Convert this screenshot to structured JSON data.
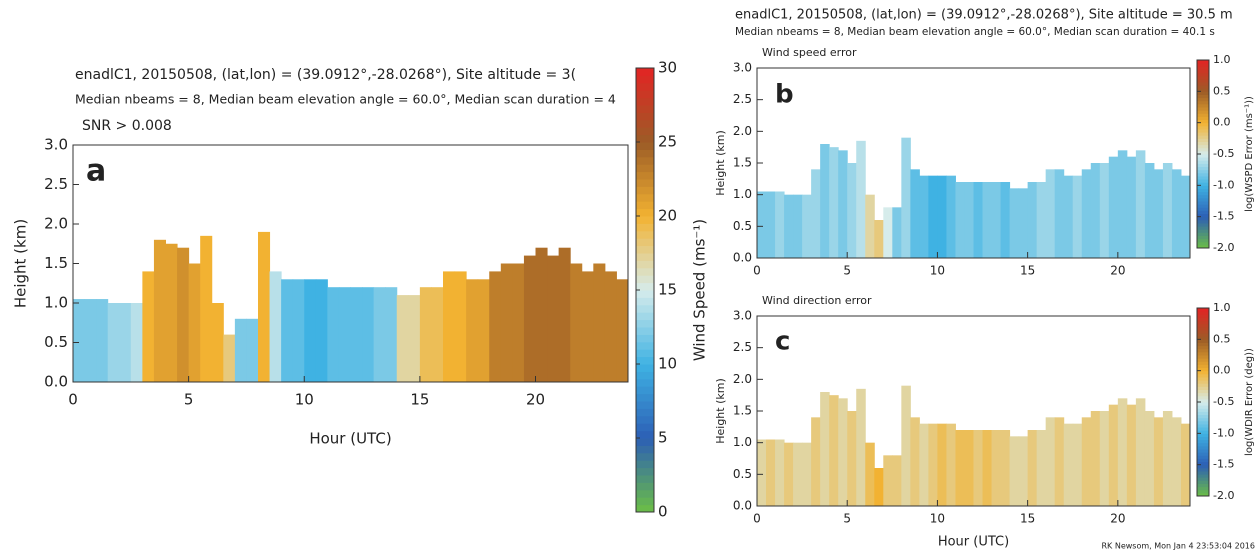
{
  "chart_data": [
    {
      "type": "heatmap",
      "panel": "a",
      "title": "enadlC1, 20150508, (lat,lon) = (39.0912°,-28.0268°), Site altitude = 3(",
      "subtitle": "Median nbeams = 8, Median beam elevation angle = 60.0°, Median scan duration = 4",
      "plot_title": "SNR > 0.008",
      "xlabel": "Hour (UTC)",
      "ylabel": "Height (km)",
      "colorbar_label": "Wind Speed (ms⁻¹)",
      "x": [
        0.25,
        0.75,
        1.25,
        1.75,
        2.25,
        2.75,
        3.25,
        3.75,
        4.25,
        4.75,
        5.25,
        5.75,
        6.25,
        6.75,
        7.25,
        7.75,
        8.25,
        8.75,
        9.25,
        9.75,
        10.25,
        10.75,
        11.25,
        11.75,
        12.25,
        12.75,
        13.25,
        13.75,
        14.25,
        14.75,
        15.25,
        15.75,
        16.25,
        16.75,
        17.25,
        17.75,
        18.25,
        18.75,
        19.25,
        19.75,
        20.25,
        20.75,
        21.25,
        21.75,
        22.25,
        22.75,
        23.25,
        23.75
      ],
      "tops": [
        1.05,
        1.05,
        1.05,
        1.0,
        1.0,
        1.0,
        1.4,
        1.8,
        1.75,
        1.7,
        1.5,
        1.85,
        1.0,
        0.6,
        0.8,
        0.8,
        1.9,
        1.4,
        1.3,
        1.3,
        1.3,
        1.3,
        1.2,
        1.2,
        1.2,
        1.2,
        1.2,
        1.2,
        1.1,
        1.1,
        1.2,
        1.2,
        1.4,
        1.4,
        1.3,
        1.3,
        1.4,
        1.5,
        1.5,
        1.6,
        1.7,
        1.6,
        1.7,
        1.5,
        1.4,
        1.5,
        1.4,
        1.3
      ],
      "values": [
        12,
        12,
        12,
        13,
        13,
        14,
        20,
        21,
        21,
        22,
        21,
        20,
        20,
        18,
        12,
        12,
        20,
        14,
        11,
        11,
        10,
        10,
        11,
        11,
        11,
        11,
        12,
        12,
        17,
        17,
        19,
        19,
        20,
        20,
        21,
        21,
        23,
        23,
        23,
        24,
        24,
        24,
        24,
        23,
        23,
        23,
        23,
        23
      ],
      "xlim": [
        0,
        24
      ],
      "ylim": [
        0,
        3
      ],
      "xticks": [
        0,
        5,
        10,
        15,
        20
      ],
      "yticks": [
        {
          "value": 0,
          "label": "0.0"
        },
        {
          "value": 0.5,
          "label": "0.5"
        },
        {
          "value": 1,
          "label": "1.0"
        },
        {
          "value": 1.5,
          "label": "1.5"
        },
        {
          "value": 2,
          "label": "2.0"
        },
        {
          "value": 2.5,
          "label": "2.5"
        },
        {
          "value": 3,
          "label": "3.0"
        }
      ],
      "clim": [
        0,
        30
      ],
      "cticks": [
        0,
        5,
        10,
        15,
        20,
        25,
        30
      ],
      "colormap": [
        "#6cbf45",
        "#2c5fb5",
        "#3fb2e3",
        "#d6eceb",
        "#f2b232",
        "#9c5c26",
        "#e32424"
      ]
    },
    {
      "type": "heatmap",
      "panel": "b",
      "title": "enadlC1, 20150508, (lat,lon) = (39.0912°,-28.0268°), Site altitude = 30.5 m",
      "subtitle": "Median nbeams = 8, Median beam elevation angle = 60.0°, Median scan duration = 40.1 s",
      "plot_title": "Wind speed error",
      "ylabel": "Height (km)",
      "colorbar_label": "log(WSPD Error (ms⁻¹))",
      "x": [
        0.25,
        0.75,
        1.25,
        1.75,
        2.25,
        2.75,
        3.25,
        3.75,
        4.25,
        4.75,
        5.25,
        5.75,
        6.25,
        6.75,
        7.25,
        7.75,
        8.25,
        8.75,
        9.25,
        9.75,
        10.25,
        10.75,
        11.25,
        11.75,
        12.25,
        12.75,
        13.25,
        13.75,
        14.25,
        14.75,
        15.25,
        15.75,
        16.25,
        16.75,
        17.25,
        17.75,
        18.25,
        18.75,
        19.25,
        19.75,
        20.25,
        20.75,
        21.25,
        21.75,
        22.25,
        22.75,
        23.25,
        23.75
      ],
      "tops": [
        1.05,
        1.05,
        1.05,
        1.0,
        1.0,
        1.0,
        1.4,
        1.8,
        1.75,
        1.7,
        1.5,
        1.85,
        1.0,
        0.6,
        0.8,
        0.8,
        1.9,
        1.4,
        1.3,
        1.3,
        1.3,
        1.3,
        1.2,
        1.2,
        1.2,
        1.2,
        1.2,
        1.2,
        1.1,
        1.1,
        1.2,
        1.2,
        1.4,
        1.4,
        1.3,
        1.3,
        1.4,
        1.5,
        1.5,
        1.6,
        1.7,
        1.6,
        1.7,
        1.5,
        1.4,
        1.5,
        1.4,
        1.3
      ],
      "values": [
        -0.8,
        -0.8,
        -0.7,
        -0.8,
        -0.8,
        -0.7,
        -0.7,
        -0.8,
        -0.7,
        -0.8,
        -0.7,
        -0.6,
        -0.3,
        -0.2,
        -0.5,
        -0.8,
        -0.7,
        -0.9,
        -0.9,
        -1.0,
        -1.0,
        -0.9,
        -0.8,
        -0.8,
        -0.9,
        -0.8,
        -0.8,
        -0.9,
        -0.8,
        -0.8,
        -0.8,
        -0.7,
        -0.7,
        -0.8,
        -0.8,
        -0.7,
        -0.8,
        -0.8,
        -0.7,
        -0.8,
        -0.8,
        -0.8,
        -0.7,
        -0.8,
        -0.8,
        -0.7,
        -0.8,
        -0.8
      ],
      "xlim": [
        0,
        24
      ],
      "ylim": [
        0,
        3
      ],
      "xticks": [
        0,
        5,
        10,
        15,
        20
      ],
      "yticks": [
        {
          "value": 0,
          "label": "0.0"
        },
        {
          "value": 0.5,
          "label": "0.5"
        },
        {
          "value": 1,
          "label": "1.0"
        },
        {
          "value": 1.5,
          "label": "1.5"
        },
        {
          "value": 2,
          "label": "2.0"
        },
        {
          "value": 2.5,
          "label": "2.5"
        },
        {
          "value": 3,
          "label": "3.0"
        }
      ],
      "clim": [
        -2,
        1
      ],
      "cticks": [
        {
          "value": -2,
          "label": "-2.0"
        },
        {
          "value": -1.5,
          "label": "-1.5"
        },
        {
          "value": -1,
          "label": "-1.0"
        },
        {
          "value": -0.5,
          "label": "-0.5"
        },
        {
          "value": 0,
          "label": "0.0"
        },
        {
          "value": 0.5,
          "label": "0.5"
        },
        {
          "value": 1,
          "label": "1.0"
        }
      ],
      "colormap": [
        "#6cbf45",
        "#2c5fb5",
        "#3fb2e3",
        "#d6eceb",
        "#f2b232",
        "#9c5c26",
        "#e32424"
      ]
    },
    {
      "type": "heatmap",
      "panel": "c",
      "plot_title": "Wind direction error",
      "xlabel": "Hour (UTC)",
      "ylabel": "Height (km)",
      "colorbar_label": "log(WDIR Error (deg))",
      "footer": "RK Newsom, Mon Jan  4 23:53:04 2016",
      "x": [
        0.25,
        0.75,
        1.25,
        1.75,
        2.25,
        2.75,
        3.25,
        3.75,
        4.25,
        4.75,
        5.25,
        5.75,
        6.25,
        6.75,
        7.25,
        7.75,
        8.25,
        8.75,
        9.25,
        9.75,
        10.25,
        10.75,
        11.25,
        11.75,
        12.25,
        12.75,
        13.25,
        13.75,
        14.25,
        14.75,
        15.25,
        15.75,
        16.25,
        16.75,
        17.25,
        17.75,
        18.25,
        18.75,
        19.25,
        19.75,
        20.25,
        20.75,
        21.25,
        21.75,
        22.25,
        22.75,
        23.25,
        23.75
      ],
      "tops": [
        1.05,
        1.05,
        1.05,
        1.0,
        1.0,
        1.0,
        1.4,
        1.8,
        1.75,
        1.7,
        1.5,
        1.85,
        1.0,
        0.6,
        0.8,
        0.8,
        1.9,
        1.4,
        1.3,
        1.3,
        1.3,
        1.3,
        1.2,
        1.2,
        1.2,
        1.2,
        1.2,
        1.2,
        1.1,
        1.1,
        1.2,
        1.2,
        1.4,
        1.4,
        1.3,
        1.3,
        1.4,
        1.5,
        1.5,
        1.6,
        1.7,
        1.6,
        1.7,
        1.5,
        1.4,
        1.5,
        1.4,
        1.3
      ],
      "values": [
        -0.3,
        -0.2,
        -0.3,
        -0.2,
        -0.3,
        -0.3,
        -0.2,
        -0.3,
        -0.2,
        -0.3,
        -0.2,
        -0.3,
        -0.1,
        0.0,
        -0.2,
        -0.2,
        -0.3,
        -0.2,
        -0.3,
        -0.2,
        -0.1,
        -0.2,
        -0.1,
        -0.1,
        -0.2,
        -0.1,
        -0.2,
        -0.2,
        -0.3,
        -0.3,
        -0.2,
        -0.3,
        -0.3,
        -0.2,
        -0.3,
        -0.3,
        -0.2,
        -0.2,
        -0.3,
        -0.2,
        -0.3,
        -0.2,
        -0.3,
        -0.3,
        -0.2,
        -0.3,
        -0.3,
        -0.2
      ],
      "xlim": [
        0,
        24
      ],
      "ylim": [
        0,
        3
      ],
      "xticks": [
        0,
        5,
        10,
        15,
        20
      ],
      "yticks": [
        {
          "value": 0,
          "label": "0.0"
        },
        {
          "value": 0.5,
          "label": "0.5"
        },
        {
          "value": 1,
          "label": "1.0"
        },
        {
          "value": 1.5,
          "label": "1.5"
        },
        {
          "value": 2,
          "label": "2.0"
        },
        {
          "value": 2.5,
          "label": "2.5"
        },
        {
          "value": 3,
          "label": "3.0"
        }
      ],
      "clim": [
        -2,
        1
      ],
      "cticks": [
        {
          "value": -2,
          "label": "-2.0"
        },
        {
          "value": -1.5,
          "label": "-1.5"
        },
        {
          "value": -1,
          "label": "-1.0"
        },
        {
          "value": -0.5,
          "label": "-0.5"
        },
        {
          "value": 0,
          "label": "0.0"
        },
        {
          "value": 0.5,
          "label": "0.5"
        },
        {
          "value": 1,
          "label": "1.0"
        }
      ],
      "colormap": [
        "#6cbf45",
        "#2c5fb5",
        "#3fb2e3",
        "#d6eceb",
        "#f2b232",
        "#9c5c26",
        "#e32424"
      ]
    }
  ]
}
